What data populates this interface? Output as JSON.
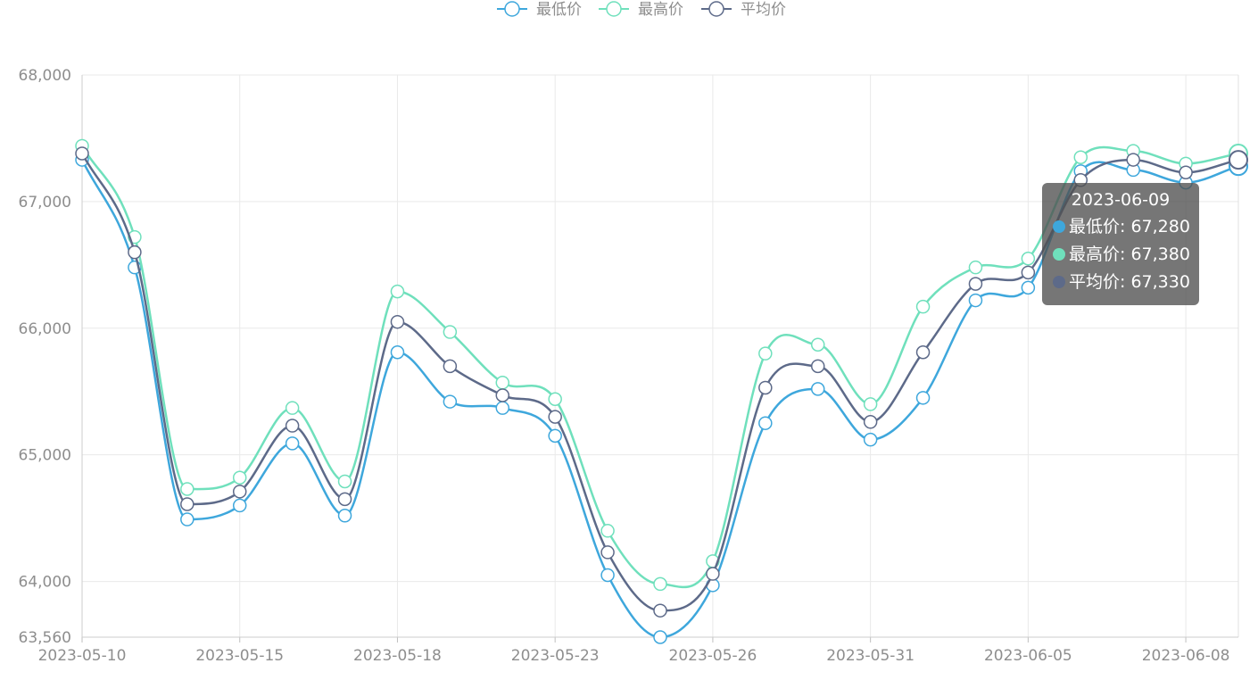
{
  "chart_data": {
    "type": "line",
    "smooth": true,
    "categories": [
      "2023-05-10",
      "2023-05-11",
      "2023-05-12",
      "2023-05-15",
      "2023-05-16",
      "2023-05-17",
      "2023-05-18",
      "2023-05-19",
      "2023-05-22",
      "2023-05-23",
      "2023-05-24",
      "2023-05-25",
      "2023-05-26",
      "2023-05-29",
      "2023-05-30",
      "2023-05-31",
      "2023-06-01",
      "2023-06-02",
      "2023-06-05",
      "2023-06-06",
      "2023-06-07",
      "2023-06-08",
      "2023-06-09"
    ],
    "x_tick_labels": [
      "2023-05-10",
      "2023-05-15",
      "2023-05-18",
      "2023-05-23",
      "2023-05-26",
      "2023-05-31",
      "2023-06-05",
      "2023-06-08"
    ],
    "y_tick_labels": [
      "68,000",
      "67,000",
      "66,000",
      "65,000",
      "64,000",
      "63,560"
    ],
    "ylim": [
      63560,
      68000
    ],
    "grid": true,
    "legend_position": "top-center",
    "series": [
      {
        "name": "最低价",
        "color": "#3ea7dc",
        "values": [
          67330,
          66480,
          64490,
          64600,
          65090,
          64520,
          65810,
          65420,
          65370,
          65150,
          64050,
          63560,
          63970,
          65250,
          65520,
          65120,
          65450,
          66220,
          66320,
          67240,
          67250,
          67150,
          67280
        ]
      },
      {
        "name": "最高价",
        "color": "#6fe0bc",
        "values": [
          67440,
          66720,
          64730,
          64820,
          65370,
          64790,
          66290,
          65970,
          65570,
          65440,
          64400,
          63980,
          64160,
          65800,
          65870,
          65400,
          66170,
          66480,
          66550,
          67350,
          67400,
          67300,
          67380
        ]
      },
      {
        "name": "平均价",
        "color": "#5d6a89",
        "values": [
          67380,
          66600,
          64610,
          64710,
          65230,
          64650,
          66050,
          65700,
          65470,
          65300,
          64230,
          63770,
          64060,
          65530,
          65700,
          65260,
          65810,
          66350,
          66440,
          67170,
          67330,
          67230,
          67330
        ]
      }
    ]
  },
  "tooltip": {
    "date": "2023-06-09",
    "rows": [
      {
        "text": "最低价: 67,280",
        "color": "#3ea7dc"
      },
      {
        "text": "最高价: 67,380",
        "color": "#6fe0bc"
      },
      {
        "text": "平均价: 67,330",
        "color": "#5d6a89"
      }
    ]
  }
}
